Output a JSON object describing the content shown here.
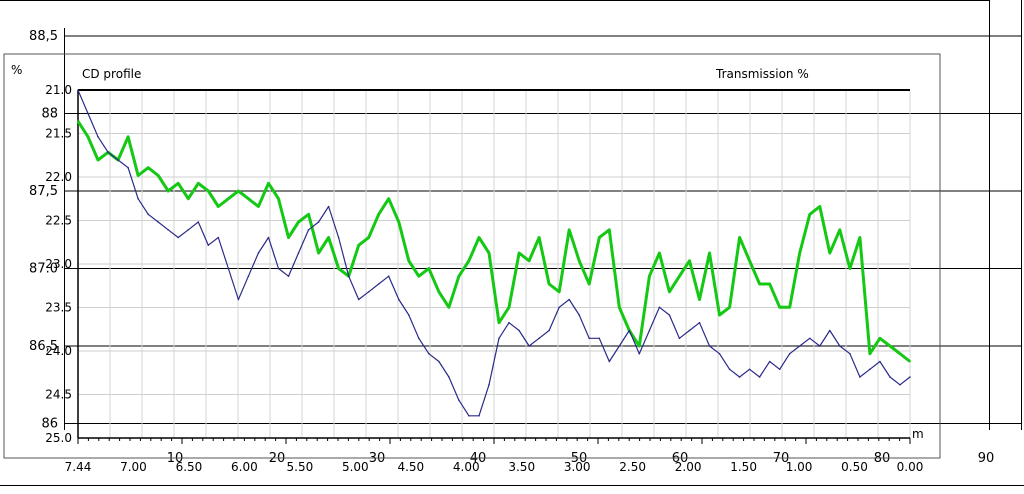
{
  "chart_data": [
    {
      "type": "line",
      "title": "CD profile",
      "right_title": "Transmission  %",
      "ylabel": "%",
      "xlabel": "m",
      "grid": true,
      "inner_y_ticks": [
        "21.0",
        "21.5",
        "22.0",
        "22.5",
        "23.0",
        "23.5",
        "24.0",
        "24.5",
        "25.0"
      ],
      "inner_y_range": [
        21.0,
        25.0
      ],
      "inner_x_ticks": [
        "7.44",
        "7.00",
        "6.50",
        "6.00",
        "5.50",
        "5.00",
        "4.50",
        "4.00",
        "3.50",
        "3.00",
        "2.50",
        "2.00",
        "1.50",
        "1.00",
        "0.50",
        "0.00"
      ],
      "series": [
        {
          "name": "",
          "color": "#14c814",
          "x": [
            0,
            1,
            2,
            3,
            4,
            5,
            6,
            7,
            8,
            9,
            10,
            11,
            12,
            13,
            14,
            15,
            16,
            17,
            18,
            19,
            20,
            21,
            22,
            23,
            24,
            25,
            26,
            27,
            28,
            29,
            30,
            31,
            32,
            33,
            34,
            35,
            36,
            37,
            38,
            39,
            40,
            41,
            42,
            43,
            44,
            45,
            46,
            47,
            48,
            49,
            50,
            51,
            52,
            53,
            54,
            55,
            56,
            57,
            58,
            59,
            60,
            61,
            62,
            63,
            64,
            65,
            66,
            67,
            68,
            69,
            70,
            71,
            72,
            73,
            74,
            75,
            76,
            77,
            78,
            79,
            80,
            81,
            82,
            83
          ],
          "values": [
            87.95,
            87.85,
            87.7,
            87.75,
            87.7,
            87.85,
            87.6,
            87.65,
            87.6,
            87.5,
            87.55,
            87.45,
            87.55,
            87.5,
            87.4,
            87.45,
            87.5,
            87.45,
            87.4,
            87.55,
            87.45,
            87.2,
            87.3,
            87.35,
            87.1,
            87.2,
            87.0,
            86.95,
            87.15,
            87.2,
            87.35,
            87.45,
            87.3,
            87.05,
            86.95,
            87.0,
            86.85,
            86.75,
            86.95,
            87.05,
            87.2,
            87.1,
            86.65,
            86.75,
            87.1,
            87.05,
            87.2,
            86.9,
            86.85,
            87.25,
            87.05,
            86.9,
            87.2,
            87.25,
            86.75,
            86.6,
            86.5,
            86.95,
            87.1,
            86.85,
            86.95,
            87.05,
            86.8,
            87.1,
            86.7,
            86.75,
            87.2,
            87.05,
            86.9,
            86.9,
            86.75,
            86.75,
            87.1,
            87.35,
            87.4,
            87.1,
            87.25,
            87.0,
            87.2,
            86.45,
            86.55,
            86.5,
            86.45,
            86.4
          ]
        },
        {
          "name": "",
          "color": "#2a2a8a",
          "x": [
            0,
            1,
            2,
            3,
            4,
            5,
            6,
            7,
            8,
            9,
            10,
            11,
            12,
            13,
            14,
            15,
            16,
            17,
            18,
            19,
            20,
            21,
            22,
            23,
            24,
            25,
            26,
            27,
            28,
            29,
            30,
            31,
            32,
            33,
            34,
            35,
            36,
            37,
            38,
            39,
            40,
            41,
            42,
            43,
            44,
            45,
            46,
            47,
            48,
            49,
            50,
            51,
            52,
            53,
            54,
            55,
            56,
            57,
            58,
            59,
            60,
            61,
            62,
            63,
            64,
            65,
            66,
            67,
            68,
            69,
            70,
            71,
            72,
            73,
            74,
            75,
            76,
            77,
            78,
            79,
            80,
            81,
            82,
            83
          ],
          "values": [
            88.15,
            88.0,
            87.85,
            87.75,
            87.7,
            87.65,
            87.45,
            87.35,
            87.3,
            87.25,
            87.2,
            87.25,
            87.3,
            87.15,
            87.2,
            87.0,
            86.8,
            86.95,
            87.1,
            87.2,
            87.0,
            86.95,
            87.1,
            87.25,
            87.3,
            87.4,
            87.2,
            86.95,
            86.8,
            86.85,
            86.9,
            86.95,
            86.8,
            86.7,
            86.55,
            86.45,
            86.4,
            86.3,
            86.15,
            86.05,
            86.05,
            86.25,
            86.55,
            86.65,
            86.6,
            86.5,
            86.55,
            86.6,
            86.75,
            86.8,
            86.7,
            86.55,
            86.55,
            86.4,
            86.5,
            86.6,
            86.45,
            86.6,
            86.75,
            86.7,
            86.55,
            86.6,
            86.65,
            86.5,
            86.45,
            86.35,
            86.3,
            86.35,
            86.3,
            86.4,
            86.35,
            86.45,
            86.5,
            86.55,
            86.5,
            86.6,
            86.5,
            86.45,
            86.3,
            86.35,
            86.4,
            86.3,
            86.25,
            86.3
          ]
        }
      ]
    },
    {
      "type": "line",
      "title": "",
      "xlabel": "",
      "ylabel": "",
      "grid": true,
      "y_ticks": [
        "88,5",
        "88",
        "87,5",
        "87.0",
        "86,5",
        "86"
      ],
      "x_ticks": [
        "10",
        "20",
        "30",
        "40",
        "50",
        "60",
        "70",
        "80",
        "90"
      ]
    }
  ]
}
